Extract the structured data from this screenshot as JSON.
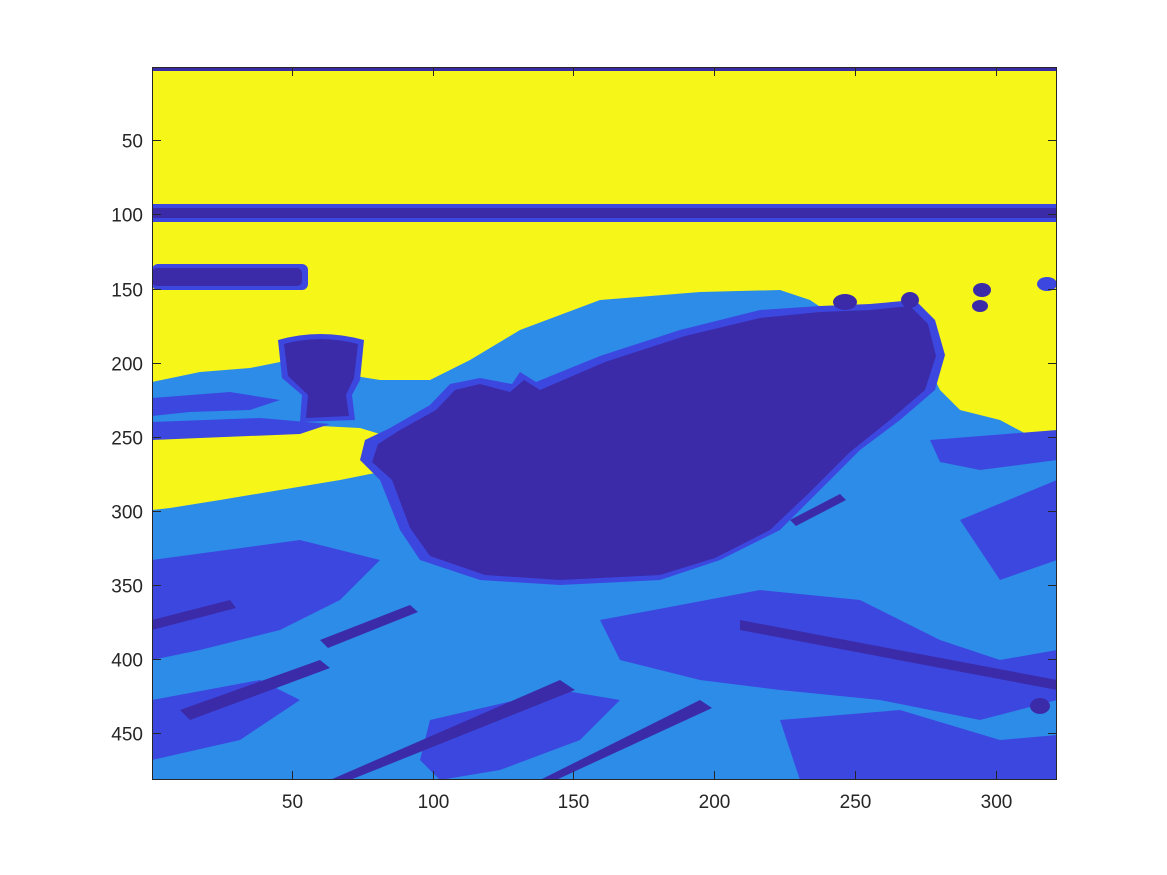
{
  "chart_data": {
    "type": "heatmap",
    "title": "",
    "xlabel": "",
    "ylabel": "",
    "xlim": [
      0.5,
      321.5
    ],
    "ylim": [
      0.5,
      481.5
    ],
    "y_direction": "reverse",
    "x_ticks": [
      50,
      100,
      150,
      200,
      250,
      300
    ],
    "y_ticks": [
      50,
      100,
      150,
      200,
      250,
      300,
      350,
      400,
      450
    ],
    "colormap": "parula",
    "quantized_levels": 4,
    "level_colors": [
      "#3b2ba9",
      "#3c47df",
      "#2d8ce8",
      "#f6f718"
    ],
    "image_content": "4-level quantized photo of a boat on a dock"
  },
  "colors": {
    "axis": "#262626",
    "background": "#ffffff"
  }
}
